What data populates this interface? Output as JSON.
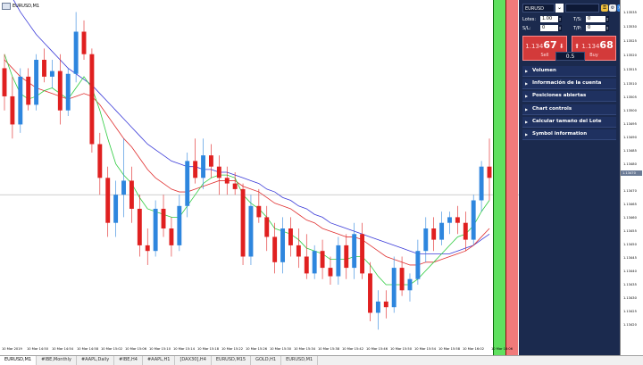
{
  "window": {
    "title": "EURUSD,M1"
  },
  "panel": {
    "symbol": "EURUSD",
    "lotes_label": "Lotes:",
    "lotes_value": "1.00",
    "ts_label": "T/S:",
    "ts_value": "0",
    "sl_label": "S/L:",
    "sl_value": "0",
    "tp_label": "T/P:",
    "tp_value": "0",
    "sell": {
      "prefix": "1.134",
      "big": "67",
      "dir": "Sell"
    },
    "buy": {
      "prefix": "1.134",
      "big": "68",
      "dir": "Buy"
    },
    "lot_size": "0.5",
    "sections": [
      "Volumen",
      "Información de la cuenta",
      "Posiciones abiertas",
      "Chart controls",
      "Calcular tamaño del Lote",
      "Symbol information"
    ]
  },
  "price_axis": {
    "ticks": [
      "1.13535",
      "1.13530",
      "1.13525",
      "1.13520",
      "1.13515",
      "1.13510",
      "1.13505",
      "1.13500",
      "1.13495",
      "1.13490",
      "1.13485",
      "1.13480",
      "1.13475",
      "1.13470",
      "1.13465",
      "1.13460",
      "1.13455",
      "1.13450",
      "1.13445",
      "1.13440",
      "1.13435",
      "1.13430",
      "1.13425",
      "1.13420"
    ],
    "current": "1.13470"
  },
  "time_axis": {
    "labels": [
      "10 Mar 2019",
      "10 Mar 14:50",
      "10 Mar 14:54",
      "10 Mar 14:58",
      "10 Mar 15:02",
      "10 Mar 15:06",
      "10 Mar 15:10",
      "10 Mar 15:14",
      "10 Mar 15:18",
      "10 Mar 15:22",
      "10 Mar 15:26",
      "10 Mar 15:30",
      "10 Mar 15:34",
      "10 Mar 15:38",
      "10 Mar 15:42",
      "10 Mar 15:46",
      "10 Mar 15:50",
      "10 Mar 15:54",
      "10 Mar 15:58",
      "10 Mar 16:02",
      "10 Mar 16:06"
    ]
  },
  "tabs": [
    "EURUSD,M1",
    "#IBE,Monthly",
    "#AAPL,Daily",
    "#IBE,H4",
    "#AAPL,H1",
    "[DAX30],H4",
    "EURUSD,M15",
    "GOLD,H1",
    "EURUSD,M1"
  ],
  "colors": {
    "bull": "#2e86de",
    "bear": "#e02020",
    "ma_fast": "#2ecc40",
    "ma_mid": "#e03030",
    "ma_slow": "#3a3ad8",
    "panel_bg": "#1b2a4e"
  },
  "chart_data": {
    "type": "candlestick",
    "ylim": [
      1.13418,
      1.13538
    ],
    "candles": [
      {
        "o": 1.13515,
        "h": 1.1352,
        "l": 1.135,
        "c": 1.13505
      },
      {
        "o": 1.13505,
        "h": 1.13512,
        "l": 1.1349,
        "c": 1.13495
      },
      {
        "o": 1.13495,
        "h": 1.13515,
        "l": 1.13492,
        "c": 1.13512
      },
      {
        "o": 1.13512,
        "h": 1.13515,
        "l": 1.135,
        "c": 1.13502
      },
      {
        "o": 1.13502,
        "h": 1.1352,
        "l": 1.135,
        "c": 1.13518
      },
      {
        "o": 1.13518,
        "h": 1.13522,
        "l": 1.1351,
        "c": 1.13512
      },
      {
        "o": 1.13512,
        "h": 1.13518,
        "l": 1.13508,
        "c": 1.13514
      },
      {
        "o": 1.13514,
        "h": 1.1352,
        "l": 1.13495,
        "c": 1.135
      },
      {
        "o": 1.135,
        "h": 1.13515,
        "l": 1.13498,
        "c": 1.13513
      },
      {
        "o": 1.13513,
        "h": 1.13535,
        "l": 1.1351,
        "c": 1.13528
      },
      {
        "o": 1.13528,
        "h": 1.13532,
        "l": 1.13518,
        "c": 1.1352
      },
      {
        "o": 1.1352,
        "h": 1.13522,
        "l": 1.13485,
        "c": 1.13488
      },
      {
        "o": 1.13488,
        "h": 1.13492,
        "l": 1.1347,
        "c": 1.13476
      },
      {
        "o": 1.13476,
        "h": 1.1348,
        "l": 1.13455,
        "c": 1.1346
      },
      {
        "o": 1.1346,
        "h": 1.13475,
        "l": 1.13455,
        "c": 1.1347
      },
      {
        "o": 1.1347,
        "h": 1.1349,
        "l": 1.13462,
        "c": 1.13475
      },
      {
        "o": 1.13475,
        "h": 1.1348,
        "l": 1.1346,
        "c": 1.13465
      },
      {
        "o": 1.13465,
        "h": 1.1347,
        "l": 1.13448,
        "c": 1.13452
      },
      {
        "o": 1.13452,
        "h": 1.13458,
        "l": 1.13445,
        "c": 1.1345
      },
      {
        "o": 1.1345,
        "h": 1.13468,
        "l": 1.13448,
        "c": 1.13465
      },
      {
        "o": 1.13465,
        "h": 1.1347,
        "l": 1.13455,
        "c": 1.13458
      },
      {
        "o": 1.13458,
        "h": 1.13462,
        "l": 1.13448,
        "c": 1.13452
      },
      {
        "o": 1.13452,
        "h": 1.1347,
        "l": 1.1345,
        "c": 1.13466
      },
      {
        "o": 1.13466,
        "h": 1.13485,
        "l": 1.13462,
        "c": 1.13482
      },
      {
        "o": 1.13482,
        "h": 1.1349,
        "l": 1.13474,
        "c": 1.13476
      },
      {
        "o": 1.13476,
        "h": 1.1349,
        "l": 1.13472,
        "c": 1.13484
      },
      {
        "o": 1.13484,
        "h": 1.13488,
        "l": 1.13476,
        "c": 1.1348
      },
      {
        "o": 1.1348,
        "h": 1.13484,
        "l": 1.1347,
        "c": 1.13476
      },
      {
        "o": 1.13476,
        "h": 1.1348,
        "l": 1.1347,
        "c": 1.13474
      },
      {
        "o": 1.13474,
        "h": 1.13478,
        "l": 1.1347,
        "c": 1.13472
      },
      {
        "o": 1.13472,
        "h": 1.13474,
        "l": 1.13445,
        "c": 1.13448
      },
      {
        "o": 1.13448,
        "h": 1.1347,
        "l": 1.13445,
        "c": 1.13466
      },
      {
        "o": 1.13466,
        "h": 1.13472,
        "l": 1.1346,
        "c": 1.13462
      },
      {
        "o": 1.13462,
        "h": 1.13466,
        "l": 1.1345,
        "c": 1.13455
      },
      {
        "o": 1.13455,
        "h": 1.1346,
        "l": 1.13442,
        "c": 1.13446
      },
      {
        "o": 1.13446,
        "h": 1.13462,
        "l": 1.13442,
        "c": 1.13458
      },
      {
        "o": 1.13458,
        "h": 1.13462,
        "l": 1.13448,
        "c": 1.13452
      },
      {
        "o": 1.13452,
        "h": 1.13458,
        "l": 1.13444,
        "c": 1.13448
      },
      {
        "o": 1.13448,
        "h": 1.13456,
        "l": 1.1344,
        "c": 1.13442
      },
      {
        "o": 1.13442,
        "h": 1.13452,
        "l": 1.1344,
        "c": 1.1345
      },
      {
        "o": 1.1345,
        "h": 1.13454,
        "l": 1.1344,
        "c": 1.13444
      },
      {
        "o": 1.13444,
        "h": 1.13448,
        "l": 1.13438,
        "c": 1.13441
      },
      {
        "o": 1.13441,
        "h": 1.13455,
        "l": 1.13438,
        "c": 1.13452
      },
      {
        "o": 1.13452,
        "h": 1.13456,
        "l": 1.1344,
        "c": 1.13444
      },
      {
        "o": 1.13444,
        "h": 1.1346,
        "l": 1.1344,
        "c": 1.13456
      },
      {
        "o": 1.13456,
        "h": 1.1346,
        "l": 1.1344,
        "c": 1.13442
      },
      {
        "o": 1.13442,
        "h": 1.13446,
        "l": 1.13425,
        "c": 1.13428
      },
      {
        "o": 1.13428,
        "h": 1.13436,
        "l": 1.13422,
        "c": 1.13432
      },
      {
        "o": 1.13432,
        "h": 1.13436,
        "l": 1.13426,
        "c": 1.1343
      },
      {
        "o": 1.1343,
        "h": 1.13448,
        "l": 1.13428,
        "c": 1.13444
      },
      {
        "o": 1.13444,
        "h": 1.13448,
        "l": 1.13434,
        "c": 1.13436
      },
      {
        "o": 1.13436,
        "h": 1.13442,
        "l": 1.13432,
        "c": 1.1344
      },
      {
        "o": 1.1344,
        "h": 1.13454,
        "l": 1.13438,
        "c": 1.1345
      },
      {
        "o": 1.1345,
        "h": 1.13462,
        "l": 1.13446,
        "c": 1.13458
      },
      {
        "o": 1.13458,
        "h": 1.13462,
        "l": 1.1345,
        "c": 1.13454
      },
      {
        "o": 1.13454,
        "h": 1.13464,
        "l": 1.13452,
        "c": 1.1346
      },
      {
        "o": 1.1346,
        "h": 1.13464,
        "l": 1.13456,
        "c": 1.13462
      },
      {
        "o": 1.13462,
        "h": 1.13466,
        "l": 1.13456,
        "c": 1.1346
      },
      {
        "o": 1.1346,
        "h": 1.13464,
        "l": 1.1345,
        "c": 1.13454
      },
      {
        "o": 1.13454,
        "h": 1.1347,
        "l": 1.13452,
        "c": 1.13468
      },
      {
        "o": 1.13468,
        "h": 1.13482,
        "l": 1.13464,
        "c": 1.1348
      },
      {
        "o": 1.1348,
        "h": 1.1349,
        "l": 1.13468,
        "c": 1.13476
      }
    ],
    "ma_fast": [
      1.1352,
      1.13512,
      1.13506,
      1.13504,
      1.13505,
      1.13507,
      1.13508,
      1.13506,
      1.13504,
      1.13508,
      1.13512,
      1.13508,
      1.135,
      1.1349,
      1.13481,
      1.13477,
      1.13474,
      1.13469,
      1.13465,
      1.13464,
      1.13463,
      1.13462,
      1.13462,
      1.13466,
      1.1347,
      1.13474,
      1.13476,
      1.13477,
      1.13477,
      1.13476,
      1.1347,
      1.13467,
      1.13465,
      1.13462,
      1.13458,
      1.13457,
      1.13456,
      1.13454,
      1.13451,
      1.1345,
      1.13449,
      1.13447,
      1.13447,
      1.13447,
      1.13448,
      1.13448,
      1.13445,
      1.13441,
      1.13438,
      1.13438,
      1.13438,
      1.13438,
      1.1344,
      1.13443,
      1.13446,
      1.13449,
      1.13452,
      1.13455,
      1.13456,
      1.13459,
      1.13464,
      1.13468
    ],
    "ma_mid": [
      1.13518,
      1.13515,
      1.13512,
      1.1351,
      1.13508,
      1.13507,
      1.13506,
      1.13505,
      1.13504,
      1.13505,
      1.13506,
      1.13505,
      1.13502,
      1.13498,
      1.13494,
      1.1349,
      1.13487,
      1.13483,
      1.13479,
      1.13476,
      1.13474,
      1.13472,
      1.13471,
      1.13471,
      1.13472,
      1.13473,
      1.13474,
      1.13475,
      1.13475,
      1.13475,
      1.13473,
      1.13472,
      1.13471,
      1.13469,
      1.13467,
      1.13466,
      1.13465,
      1.13463,
      1.13461,
      1.1346,
      1.13458,
      1.13457,
      1.13456,
      1.13455,
      1.13455,
      1.13454,
      1.13452,
      1.1345,
      1.13448,
      1.13447,
      1.13446,
      1.13445,
      1.13445,
      1.13446,
      1.13446,
      1.13447,
      1.13448,
      1.13449,
      1.1345,
      1.13452,
      1.13455,
      1.13458
    ],
    "ma_slow": [
      1.13545,
      1.1354,
      1.13535,
      1.13531,
      1.13527,
      1.13524,
      1.13521,
      1.13518,
      1.13515,
      1.13513,
      1.13511,
      1.13509,
      1.13506,
      1.13503,
      1.135,
      1.13497,
      1.13494,
      1.13491,
      1.13488,
      1.13486,
      1.13484,
      1.13482,
      1.13481,
      1.1348,
      1.1348,
      1.13479,
      1.13479,
      1.13478,
      1.13478,
      1.13477,
      1.13476,
      1.13475,
      1.13474,
      1.13472,
      1.13471,
      1.13469,
      1.13468,
      1.13466,
      1.13465,
      1.13463,
      1.13462,
      1.1346,
      1.13459,
      1.13458,
      1.13457,
      1.13456,
      1.13455,
      1.13454,
      1.13453,
      1.13452,
      1.13451,
      1.1345,
      1.13449,
      1.13449,
      1.13449,
      1.13449,
      1.13449,
      1.1345,
      1.13451,
      1.13452,
      1.13454,
      1.13456
    ]
  }
}
